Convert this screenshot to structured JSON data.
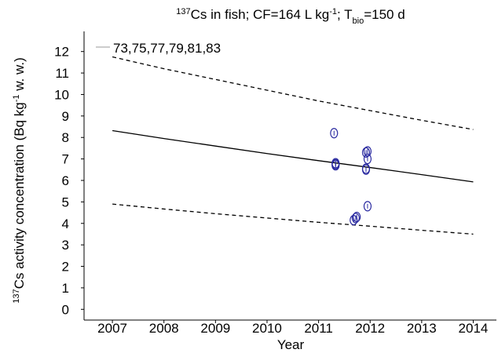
{
  "chart_data": {
    "type": "line",
    "title": [
      {
        "text": "137",
        "shift": "super"
      },
      {
        "text": "Cs in fish; CF=164 L kg"
      },
      {
        "text": "-1",
        "shift": "super"
      },
      {
        "text": "; T"
      },
      {
        "text": "bio",
        "shift": "sub"
      },
      {
        "text": "=150 d"
      }
    ],
    "y_label": [
      {
        "text": "137",
        "shift": "super"
      },
      {
        "text": "Cs activity concentration (Bq kg"
      },
      {
        "text": "-1",
        "shift": "super"
      },
      {
        "text": " w. w.)"
      }
    ],
    "x_label": "Year",
    "xlim": [
      2006.45,
      2014.45
    ],
    "ylim": [
      -0.5,
      12.5
    ],
    "xticks": [
      2007,
      2008,
      2009,
      2010,
      2011,
      2012,
      2013,
      2014
    ],
    "yticks": [
      0,
      1,
      2,
      3,
      4,
      5,
      6,
      7,
      8,
      9,
      10,
      11,
      12
    ],
    "legend": "upper-left",
    "x": [
      2007,
      2008,
      2009,
      2010,
      2011,
      2012,
      2013,
      2014
    ],
    "series": [
      {
        "name": "73,75,77,79,81,83",
        "color": "#000000",
        "legend_color": "#999999",
        "dash": "solid",
        "values": [
          8.32,
          7.95,
          7.6,
          7.25,
          6.92,
          6.6,
          6.27,
          5.93
        ]
      },
      {
        "color": "#000000",
        "dash": "dashed",
        "values": [
          11.75,
          11.2,
          10.7,
          10.2,
          9.7,
          9.25,
          8.8,
          8.37
        ]
      },
      {
        "color": "#000000",
        "dash": "dashed",
        "values": [
          4.9,
          4.67,
          4.45,
          4.25,
          4.05,
          3.87,
          3.68,
          3.5
        ]
      }
    ],
    "points": {
      "color": "#2a2aa0",
      "x": [
        2011.3,
        2011.33,
        2011.33,
        2011.33,
        2011.68,
        2011.72,
        2011.74,
        2011.92,
        2011.95,
        2011.95,
        2011.92,
        2011.92,
        2011.95
      ],
      "values": [
        8.2,
        6.8,
        6.7,
        6.75,
        4.15,
        4.25,
        4.3,
        7.3,
        7.35,
        7.0,
        6.5,
        6.55,
        4.8
      ]
    }
  }
}
